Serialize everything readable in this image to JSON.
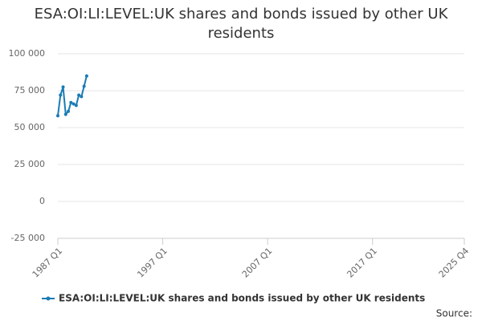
{
  "chart_data": {
    "type": "line",
    "title": "ESA:OI:LI:LEVEL:UK shares and bonds issued by other UK residents",
    "x": [
      "1987 Q1",
      "1987 Q2",
      "1987 Q3",
      "1987 Q4",
      "1988 Q1",
      "1988 Q2",
      "1988 Q3",
      "1988 Q4",
      "1989 Q1",
      "1989 Q2",
      "1989 Q3",
      "1989 Q4"
    ],
    "series": [
      {
        "name": "ESA:OI:LI:LEVEL:UK shares and bonds issued by other UK residents",
        "color": "#1a7bb5",
        "values": [
          58000,
          72000,
          77500,
          59000,
          61000,
          67000,
          66000,
          65000,
          72000,
          71000,
          78000,
          85000
        ]
      }
    ],
    "xlim": [
      "1987 Q1",
      "2025 Q4"
    ],
    "xticks": [
      "1987 Q1",
      "1997 Q1",
      "2007 Q1",
      "2017 Q1",
      "2025 Q4"
    ],
    "ylim": [
      -25000,
      100000
    ],
    "yticks": [
      {
        "value": -25000,
        "label": "-25 000"
      },
      0,
      {
        "value": 25000,
        "label": "25 000"
      },
      {
        "value": 50000,
        "label": "50 000"
      },
      {
        "value": 75000,
        "label": "75 000"
      },
      {
        "value": 100000,
        "label": "100 000"
      }
    ],
    "grid": true,
    "legend": "bottom",
    "source": "Source:"
  }
}
